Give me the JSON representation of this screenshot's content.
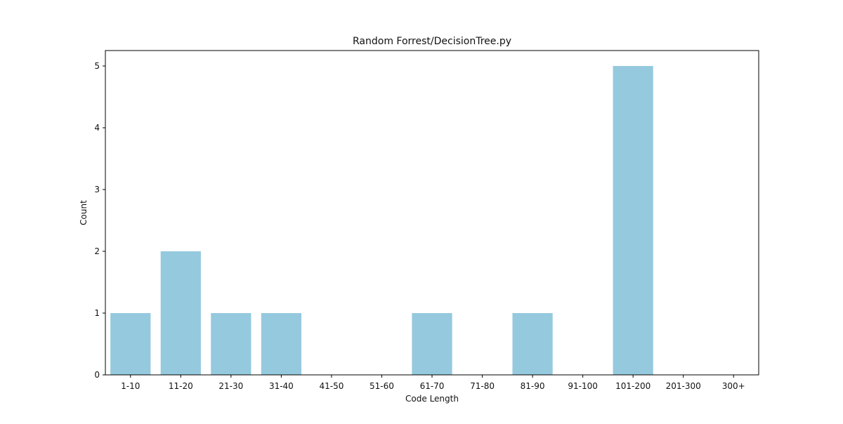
{
  "chart_data": {
    "type": "bar",
    "title": "Random Forrest/DecisionTree.py",
    "xlabel": "Code Length",
    "ylabel": "Count",
    "categories": [
      "1-10",
      "11-20",
      "21-30",
      "31-40",
      "41-50",
      "51-60",
      "61-70",
      "71-80",
      "81-90",
      "91-100",
      "101-200",
      "201-300",
      "300+"
    ],
    "values": [
      1,
      2,
      1,
      1,
      0,
      0,
      1,
      0,
      1,
      0,
      5,
      0,
      0
    ],
    "ylim": [
      0,
      5.25
    ],
    "yticks": [
      0,
      1,
      2,
      3,
      4,
      5
    ],
    "grid": false,
    "bar_color": "#95c9de",
    "axis_color": "#000000"
  }
}
